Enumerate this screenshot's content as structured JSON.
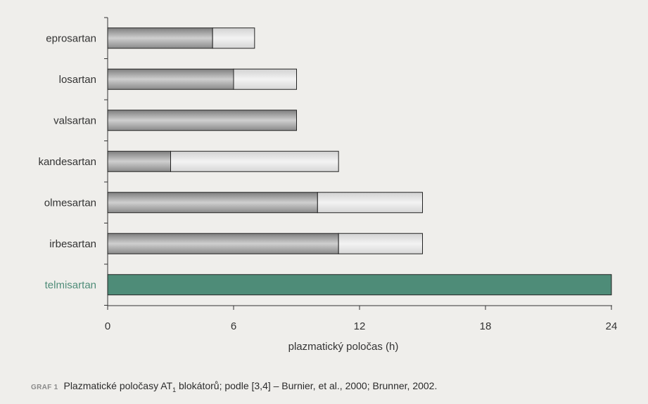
{
  "chart_data": {
    "type": "bar",
    "orientation": "horizontal",
    "stacked": true,
    "categories": [
      "eprosartan",
      "losartan",
      "valsartan",
      "kandesartan",
      "olmesartan",
      "irbesartan",
      "telmisartan"
    ],
    "series": [
      {
        "values": [
          5,
          6,
          9,
          3,
          10,
          11,
          24
        ]
      },
      {
        "values": [
          2,
          3,
          0,
          8,
          5,
          4,
          0
        ]
      }
    ],
    "highlight_category": "telmisartan",
    "colors": {
      "range_low": "#9a9a9a",
      "range_high": "#dedede",
      "highlight": "#4e8c78",
      "highlight_label": "#4e8c78",
      "label": "#333333"
    },
    "xlim": [
      0,
      24
    ],
    "xticks": [
      "0",
      "6",
      "12",
      "18",
      "24"
    ],
    "xlabel": "plazmatický poločas (h)",
    "ylabel": "",
    "title": "",
    "grid": false,
    "legend": "none"
  },
  "caption": {
    "tag": "GRAF 1",
    "text_before": "Plazmatické poločasy AT",
    "subscript": "1",
    "text_after": " blokátorů; podle [3,4] – Burnier, et al., 2000; Brunner, 2002."
  }
}
